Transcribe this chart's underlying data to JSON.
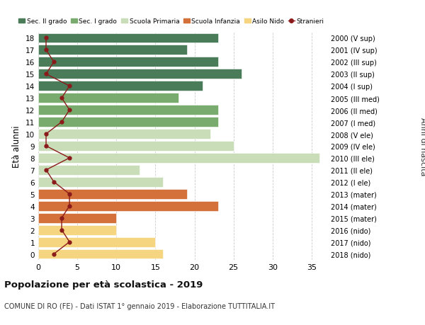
{
  "ages": [
    18,
    17,
    16,
    15,
    14,
    13,
    12,
    11,
    10,
    9,
    8,
    7,
    6,
    5,
    4,
    3,
    2,
    1,
    0
  ],
  "years": [
    "2000 (V sup)",
    "2001 (IV sup)",
    "2002 (III sup)",
    "2003 (II sup)",
    "2004 (I sup)",
    "2005 (III med)",
    "2006 (II med)",
    "2007 (I med)",
    "2008 (V ele)",
    "2009 (IV ele)",
    "2010 (III ele)",
    "2011 (II ele)",
    "2012 (I ele)",
    "2013 (mater)",
    "2014 (mater)",
    "2015 (mater)",
    "2016 (nido)",
    "2017 (nido)",
    "2018 (nido)"
  ],
  "bar_values": [
    23,
    19,
    23,
    26,
    21,
    18,
    23,
    23,
    22,
    25,
    36,
    13,
    16,
    19,
    23,
    10,
    10,
    15,
    16
  ],
  "stranieri": [
    1,
    1,
    2,
    1,
    4,
    3,
    4,
    3,
    1,
    1,
    4,
    1,
    2,
    4,
    4,
    3,
    3,
    4,
    2
  ],
  "bar_colors": [
    "#4a7c59",
    "#4a7c59",
    "#4a7c59",
    "#4a7c59",
    "#4a7c59",
    "#7aab6e",
    "#7aab6e",
    "#7aab6e",
    "#c8ddb8",
    "#c8ddb8",
    "#c8ddb8",
    "#c8ddb8",
    "#c8ddb8",
    "#d4713a",
    "#d4713a",
    "#d4713a",
    "#f5d580",
    "#f5d580",
    "#f5d580"
  ],
  "legend_colors": [
    "#4a7c59",
    "#7aab6e",
    "#c8ddb8",
    "#d4713a",
    "#f5d580"
  ],
  "legend_labels": [
    "Sec. II grado",
    "Sec. I grado",
    "Scuola Primaria",
    "Scuola Infanzia",
    "Asilo Nido"
  ],
  "stranieri_color": "#8b1a1a",
  "stranieri_label": "Stranieri",
  "title": "Popolazione per età scolastica - 2019",
  "subtitle": "COMUNE DI RO (FE) - Dati ISTAT 1° gennaio 2019 - Elaborazione TUTTITALIA.IT",
  "ylabel": "Età alunni",
  "right_label": "Anni di nascita",
  "xlim": [
    0,
    37
  ],
  "xticks": [
    0,
    5,
    10,
    15,
    20,
    25,
    30,
    35
  ],
  "bg_color": "#ffffff",
  "grid_color": "#cccccc"
}
